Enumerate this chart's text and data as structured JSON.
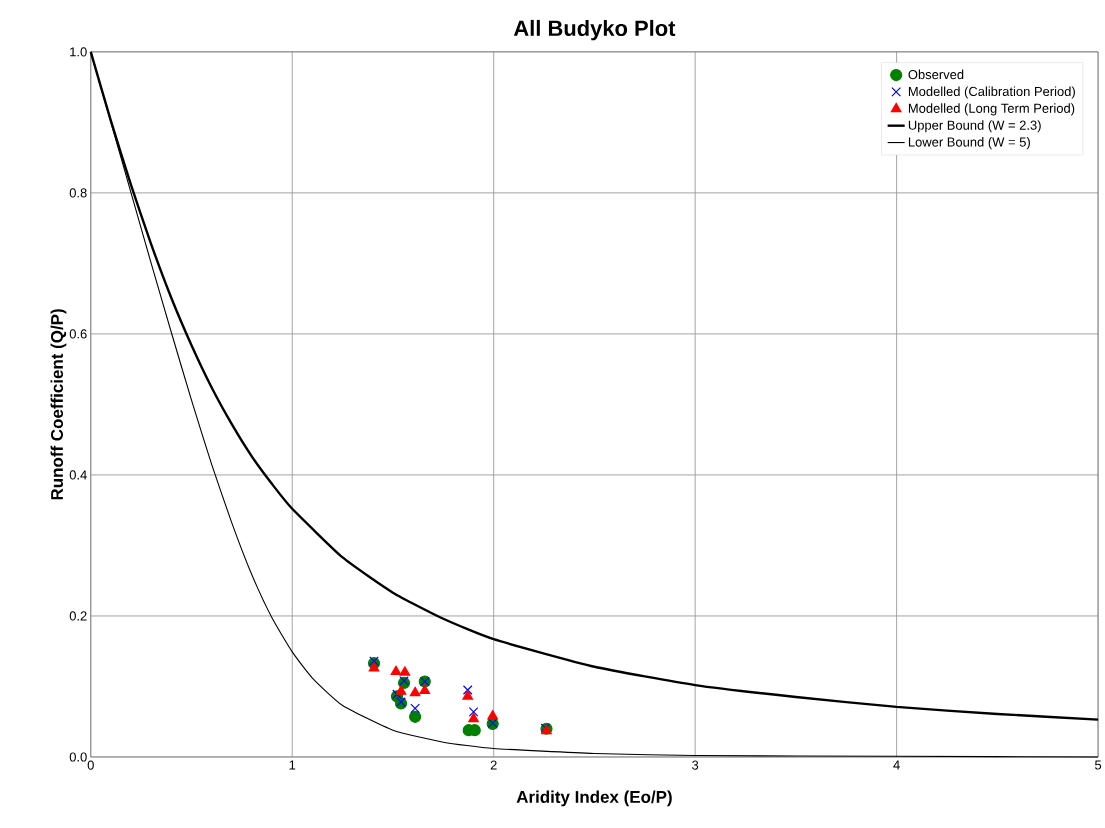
{
  "chart_data": {
    "type": "scatter",
    "title": "All Budyko Plot",
    "xlabel": "Aridity Index (Eo/P)",
    "ylabel": "Runoff Coefficient (Q/P)",
    "xlim": [
      0,
      5
    ],
    "ylim": [
      0,
      1.0
    ],
    "xticks": [
      0,
      1,
      2,
      3,
      4,
      5
    ],
    "yticks": [
      {
        "value": 0,
        "label": "0.0"
      },
      0.2,
      0.4,
      0.6,
      0.8,
      {
        "value": 1,
        "label": "1.0"
      }
    ],
    "grid": true,
    "legend": "top right",
    "series": [
      {
        "name": "Observed",
        "marker": "circle",
        "color": "#008000",
        "x": [
          1.406,
          1.555,
          1.658,
          1.52,
          1.54,
          1.61,
          1.876,
          1.906,
          1.995,
          2.262
        ],
        "values": [
          0.133,
          0.105,
          0.107,
          0.086,
          0.076,
          0.057,
          0.038,
          0.038,
          0.047,
          0.04
        ]
      },
      {
        "name": "Modelled (Calibration Period)",
        "marker": "cross",
        "color": "#0000ff",
        "x": [
          1.406,
          1.555,
          1.658,
          1.52,
          1.54,
          1.61,
          1.871,
          1.9,
          1.995,
          2.257
        ],
        "values": [
          0.136,
          0.108,
          0.107,
          0.089,
          0.078,
          0.069,
          0.095,
          0.064,
          0.048,
          0.041
        ]
      },
      {
        "name": "Modelled (Long Term Period)",
        "marker": "triangle",
        "color": "#ff0000",
        "x": [
          1.406,
          1.515,
          1.559,
          1.54,
          1.61,
          1.658,
          1.871,
          1.9,
          1.995,
          2.262
        ],
        "values": [
          0.126,
          0.121,
          0.12,
          0.093,
          0.091,
          0.094,
          0.086,
          0.054,
          0.058,
          0.037
        ]
      },
      {
        "name": "Upper Bound (W = 2.3)",
        "type": "line",
        "marker": "none",
        "line_style": "solid",
        "color": "#000000",
        "x": [
          0,
          0.1,
          0.2,
          0.3,
          0.4,
          0.5,
          0.6,
          0.7,
          0.8,
          0.9,
          1.0,
          1.25,
          1.5,
          1.75,
          2,
          2.5,
          3,
          3.5,
          4,
          4.5,
          5
        ],
        "values": [
          1.0,
          0.902,
          0.811,
          0.727,
          0.651,
          0.584,
          0.524,
          0.472,
          0.426,
          0.387,
          0.352,
          0.283,
          0.233,
          0.196,
          0.167,
          0.128,
          0.102,
          0.085,
          0.071,
          0.061,
          0.053
        ]
      },
      {
        "name": "Lower Bound (W = 5)",
        "type": "line",
        "marker": "none",
        "line_style": "solid",
        "color": "#000000",
        "x": [
          0,
          0.1,
          0.2,
          0.3,
          0.4,
          0.5,
          0.6,
          0.7,
          0.8,
          0.9,
          1.0,
          1.1,
          1.25,
          1.5,
          1.75,
          2,
          2.5,
          3,
          4,
          5
        ],
        "values": [
          1.0,
          0.9,
          0.8,
          0.7,
          0.602,
          0.506,
          0.415,
          0.332,
          0.258,
          0.197,
          0.149,
          0.112,
          0.073,
          0.038,
          0.021,
          0.012,
          0.005,
          0.002,
          0.001,
          0.0
        ]
      }
    ]
  }
}
